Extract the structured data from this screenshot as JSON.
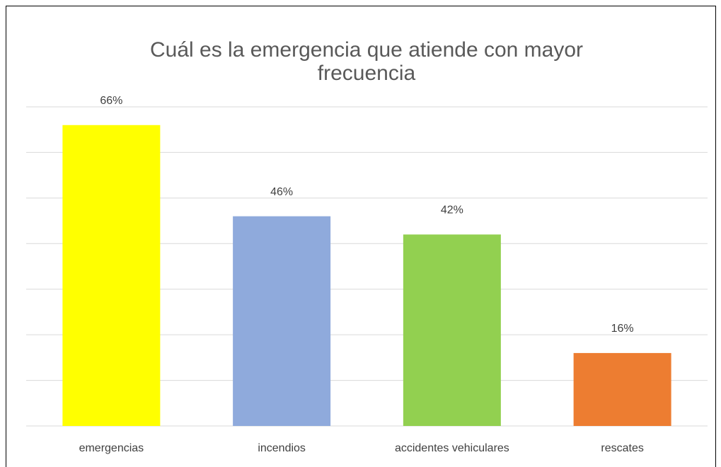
{
  "chart_data": {
    "type": "bar",
    "title": [
      "Cuál es la emergencia que atiende con mayor",
      "frecuencia"
    ],
    "categories": [
      "emergencias",
      "incendios",
      "accidentes vehiculares",
      "rescates"
    ],
    "values": [
      66,
      46,
      42,
      16
    ],
    "value_labels": [
      "66%",
      "46%",
      "42%",
      "16%"
    ],
    "colors": [
      "#ffff00",
      "#8faadc",
      "#92d050",
      "#ed7d31"
    ],
    "ylim": [
      0,
      70
    ],
    "yticks": [
      0,
      10,
      20,
      30,
      40,
      50,
      60,
      70
    ],
    "grid": true
  }
}
